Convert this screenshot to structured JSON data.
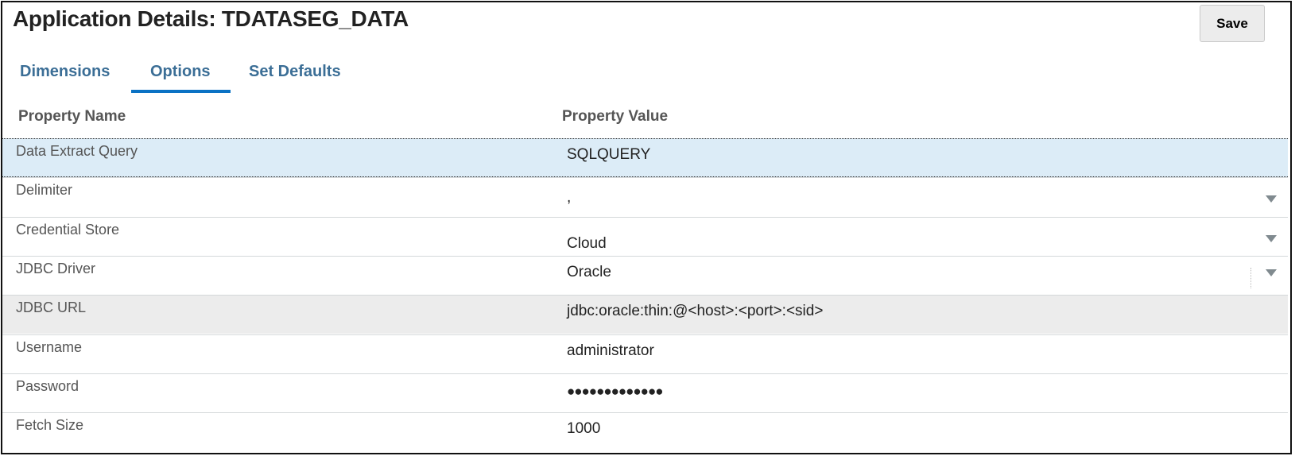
{
  "header": {
    "title": "Application Details: TDATASEG_DATA",
    "save_label": "Save"
  },
  "tabs": [
    {
      "label": "Dimensions",
      "active": false
    },
    {
      "label": "Options",
      "active": true
    },
    {
      "label": "Set Defaults",
      "active": false
    }
  ],
  "table": {
    "columns": [
      "Property Name",
      "Property Value"
    ],
    "rows": [
      {
        "name": "Data Extract Query",
        "value": "SQLQUERY",
        "type": "text",
        "state": "selected"
      },
      {
        "name": "Delimiter",
        "value": ",",
        "type": "select"
      },
      {
        "name": "Credential Store",
        "value": "Cloud",
        "type": "select"
      },
      {
        "name": "JDBC Driver",
        "value": "Oracle",
        "type": "select"
      },
      {
        "name": "JDBC URL",
        "value": "jdbc:oracle:thin:@<host>:<port>:<sid>",
        "type": "text",
        "state": "hover"
      },
      {
        "name": "Username",
        "value": "administrator",
        "type": "text"
      },
      {
        "name": "Password",
        "value": "●●●●●●●●●●●●●",
        "type": "password"
      },
      {
        "name": "Fetch Size",
        "value": "1000",
        "type": "text"
      }
    ]
  },
  "colors": {
    "tab_text": "#3b6e96",
    "tab_underline": "#0a72c4",
    "selected_row": "#dcecf7",
    "hover_row": "#ececec"
  }
}
